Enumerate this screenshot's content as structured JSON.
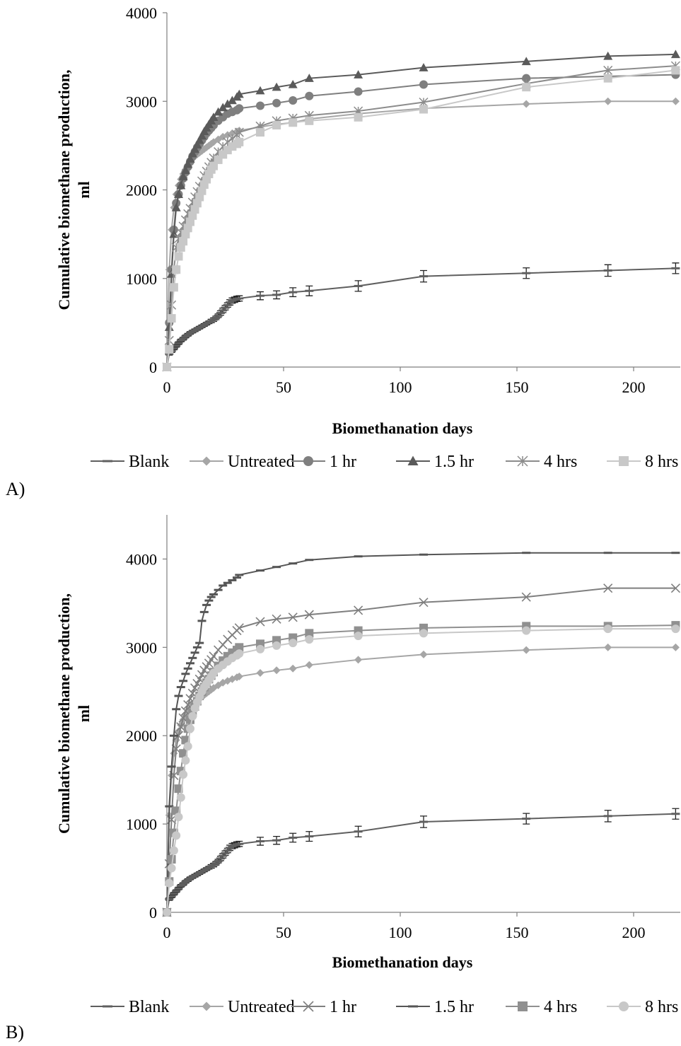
{
  "chart_data": [
    {
      "panel_label": "A)",
      "type": "line",
      "xlabel": "Biomethanation days",
      "ylabel_lines": [
        "Cumulative biomethane production,",
        "ml"
      ],
      "xlim": [
        0,
        220
      ],
      "ylim": [
        0,
        4000
      ],
      "xticks": [
        0,
        50,
        100,
        150,
        200
      ],
      "yticks": [
        0,
        1000,
        2000,
        3000,
        4000
      ],
      "grid": false,
      "legend_position": "bottom",
      "series": [
        {
          "name": "Blank",
          "color": "#5f5f5f",
          "marker": "dash",
          "error_bars": true,
          "x": [
            0,
            1,
            2,
            3,
            4,
            5,
            6,
            7,
            8,
            9,
            10,
            11,
            12,
            13,
            14,
            15,
            16,
            17,
            18,
            19,
            20,
            21,
            22,
            23,
            24,
            25,
            26,
            27,
            28,
            29,
            30,
            31,
            40,
            47,
            54,
            61,
            82,
            110,
            154,
            189,
            218
          ],
          "y": [
            0,
            150,
            180,
            210,
            240,
            270,
            300,
            320,
            345,
            365,
            385,
            400,
            415,
            430,
            445,
            460,
            475,
            490,
            505,
            520,
            535,
            555,
            580,
            610,
            640,
            670,
            700,
            730,
            750,
            760,
            770,
            775,
            805,
            815,
            845,
            860,
            915,
            1025,
            1060,
            1090,
            1115
          ],
          "err": [
            0,
            15,
            15,
            15,
            15,
            15,
            15,
            15,
            15,
            15,
            15,
            15,
            15,
            15,
            15,
            15,
            15,
            15,
            15,
            20,
            20,
            20,
            20,
            25,
            25,
            25,
            25,
            30,
            30,
            30,
            30,
            30,
            45,
            45,
            50,
            55,
            60,
            65,
            60,
            65,
            60
          ]
        },
        {
          "name": "Untreated",
          "color": "#a6a6a6",
          "marker": "diamond",
          "x": [
            0,
            1,
            2,
            3,
            4,
            5,
            6,
            7,
            8,
            9,
            10,
            11,
            12,
            13,
            14,
            15,
            16,
            17,
            18,
            19,
            20,
            22,
            24,
            26,
            28,
            30,
            31,
            40,
            47,
            54,
            61,
            82,
            110,
            154,
            189,
            218
          ],
          "y": [
            0,
            1100,
            1550,
            1800,
            1950,
            2050,
            2120,
            2180,
            2230,
            2270,
            2310,
            2350,
            2380,
            2400,
            2420,
            2440,
            2460,
            2480,
            2500,
            2520,
            2540,
            2570,
            2600,
            2620,
            2640,
            2660,
            2670,
            2710,
            2740,
            2760,
            2800,
            2860,
            2920,
            2970,
            3000,
            3000
          ]
        },
        {
          "name": "1 hr",
          "color": "#7f7f7f",
          "marker": "circle",
          "x": [
            0,
            1,
            2,
            3,
            4,
            5,
            6,
            7,
            8,
            9,
            10,
            11,
            12,
            13,
            14,
            15,
            16,
            17,
            18,
            19,
            20,
            22,
            24,
            26,
            28,
            30,
            31,
            40,
            47,
            54,
            61,
            82,
            110,
            154,
            218
          ],
          "y": [
            0,
            500,
            1100,
            1550,
            1850,
            1950,
            2050,
            2130,
            2200,
            2260,
            2320,
            2380,
            2430,
            2480,
            2520,
            2560,
            2600,
            2640,
            2670,
            2700,
            2730,
            2780,
            2820,
            2860,
            2880,
            2900,
            2920,
            2950,
            2980,
            3010,
            3060,
            3110,
            3190,
            3260,
            3300
          ]
        },
        {
          "name": "1.5 hr",
          "color": "#5a5a5a",
          "marker": "triangle",
          "x": [
            0,
            1,
            2,
            3,
            4,
            5,
            6,
            7,
            8,
            9,
            10,
            11,
            12,
            13,
            14,
            15,
            16,
            17,
            18,
            19,
            20,
            22,
            24,
            26,
            28,
            30,
            31,
            40,
            47,
            54,
            61,
            82,
            110,
            154,
            189,
            218
          ],
          "y": [
            0,
            450,
            1050,
            1500,
            1800,
            1950,
            2050,
            2150,
            2220,
            2290,
            2350,
            2410,
            2460,
            2510,
            2560,
            2610,
            2660,
            2700,
            2740,
            2780,
            2820,
            2880,
            2930,
            2970,
            3010,
            3050,
            3080,
            3120,
            3160,
            3190,
            3260,
            3300,
            3380,
            3450,
            3510,
            3530
          ]
        },
        {
          "name": "4 hrs",
          "color": "#8c8c8c",
          "marker": "asterisk",
          "x": [
            0,
            1,
            2,
            3,
            4,
            5,
            6,
            7,
            8,
            9,
            10,
            11,
            12,
            13,
            14,
            15,
            16,
            17,
            18,
            19,
            20,
            22,
            24,
            26,
            28,
            30,
            31,
            40,
            47,
            54,
            61,
            82,
            110,
            154,
            189,
            218
          ],
          "y": [
            0,
            300,
            700,
            1100,
            1350,
            1450,
            1520,
            1590,
            1660,
            1730,
            1790,
            1860,
            1920,
            1980,
            2040,
            2100,
            2160,
            2210,
            2260,
            2310,
            2360,
            2430,
            2490,
            2540,
            2580,
            2620,
            2650,
            2720,
            2780,
            2810,
            2840,
            2890,
            2990,
            3200,
            3350,
            3400
          ]
        },
        {
          "name": "8 hrs",
          "color": "#c8c8c8",
          "marker": "square",
          "x": [
            0,
            1,
            2,
            3,
            4,
            5,
            6,
            7,
            8,
            9,
            10,
            11,
            12,
            13,
            14,
            15,
            16,
            17,
            18,
            19,
            20,
            22,
            24,
            26,
            28,
            30,
            31,
            40,
            47,
            54,
            61,
            82,
            110,
            154,
            189,
            218
          ],
          "y": [
            0,
            200,
            550,
            900,
            1100,
            1250,
            1350,
            1420,
            1500,
            1570,
            1640,
            1710,
            1780,
            1850,
            1920,
            1990,
            2060,
            2120,
            2180,
            2230,
            2270,
            2340,
            2400,
            2450,
            2490,
            2520,
            2540,
            2650,
            2730,
            2760,
            2780,
            2820,
            2910,
            3160,
            3260,
            3350
          ]
        }
      ]
    },
    {
      "panel_label": "B)",
      "type": "line",
      "xlabel": "Biomethanation days",
      "ylabel_lines": [
        "Cumulative biomethane production,",
        "ml"
      ],
      "xlim": [
        0,
        220
      ],
      "ylim": [
        0,
        4500
      ],
      "xticks": [
        0,
        50,
        100,
        150,
        200
      ],
      "yticks": [
        0,
        1000,
        2000,
        3000,
        4000
      ],
      "grid": false,
      "legend_position": "bottom",
      "series": [
        {
          "name": "Blank",
          "color": "#5f5f5f",
          "marker": "dash",
          "error_bars": true,
          "x": [
            0,
            1,
            2,
            3,
            4,
            5,
            6,
            7,
            8,
            9,
            10,
            11,
            12,
            13,
            14,
            15,
            16,
            17,
            18,
            19,
            20,
            21,
            22,
            23,
            24,
            25,
            26,
            27,
            28,
            29,
            30,
            31,
            40,
            47,
            54,
            61,
            82,
            110,
            154,
            189,
            218
          ],
          "y": [
            0,
            150,
            180,
            210,
            240,
            270,
            300,
            320,
            345,
            365,
            385,
            400,
            415,
            430,
            445,
            460,
            475,
            490,
            505,
            520,
            535,
            555,
            580,
            610,
            640,
            670,
            700,
            730,
            750,
            760,
            770,
            775,
            805,
            815,
            845,
            860,
            915,
            1025,
            1060,
            1090,
            1115
          ],
          "err": [
            0,
            15,
            15,
            15,
            15,
            15,
            15,
            15,
            15,
            15,
            15,
            15,
            15,
            15,
            15,
            15,
            15,
            15,
            15,
            20,
            20,
            20,
            20,
            25,
            25,
            25,
            25,
            30,
            30,
            30,
            30,
            30,
            45,
            45,
            50,
            55,
            60,
            65,
            60,
            65,
            60
          ]
        },
        {
          "name": "Untreated",
          "color": "#a6a6a6",
          "marker": "diamond",
          "x": [
            0,
            1,
            2,
            3,
            4,
            5,
            6,
            7,
            8,
            9,
            10,
            11,
            12,
            13,
            14,
            15,
            16,
            17,
            18,
            19,
            20,
            22,
            24,
            26,
            28,
            30,
            31,
            40,
            47,
            54,
            61,
            82,
            110,
            154,
            189,
            218
          ],
          "y": [
            0,
            1100,
            1550,
            1800,
            1950,
            2050,
            2120,
            2180,
            2230,
            2270,
            2310,
            2350,
            2380,
            2400,
            2420,
            2440,
            2460,
            2480,
            2500,
            2520,
            2540,
            2570,
            2600,
            2620,
            2640,
            2660,
            2670,
            2710,
            2740,
            2760,
            2800,
            2860,
            2920,
            2970,
            3000,
            3000
          ]
        },
        {
          "name": "1 hr",
          "color": "#7f7f7f",
          "marker": "x",
          "x": [
            0,
            1,
            2,
            3,
            4,
            5,
            6,
            7,
            8,
            9,
            10,
            11,
            12,
            13,
            14,
            15,
            16,
            17,
            18,
            19,
            20,
            22,
            24,
            26,
            28,
            30,
            31,
            40,
            47,
            54,
            61,
            82,
            110,
            154,
            189,
            218
          ],
          "y": [
            0,
            550,
            1050,
            1550,
            1850,
            2000,
            2100,
            2200,
            2280,
            2350,
            2420,
            2480,
            2540,
            2590,
            2640,
            2690,
            2740,
            2780,
            2820,
            2860,
            2900,
            2970,
            3030,
            3090,
            3140,
            3190,
            3220,
            3290,
            3320,
            3340,
            3370,
            3420,
            3510,
            3570,
            3670,
            3670
          ]
        },
        {
          "name": "1.5 hr",
          "color": "#555555",
          "marker": "dash",
          "x": [
            0,
            1,
            2,
            3,
            4,
            5,
            6,
            7,
            8,
            9,
            10,
            11,
            12,
            13,
            14,
            15,
            16,
            17,
            18,
            19,
            20,
            22,
            24,
            26,
            28,
            30,
            31,
            40,
            47,
            54,
            61,
            82,
            110,
            154,
            189,
            218
          ],
          "y": [
            0,
            1200,
            1650,
            2000,
            2300,
            2450,
            2550,
            2620,
            2700,
            2760,
            2820,
            2880,
            2940,
            3000,
            3050,
            3300,
            3400,
            3480,
            3530,
            3570,
            3600,
            3650,
            3700,
            3730,
            3760,
            3790,
            3820,
            3870,
            3910,
            3950,
            3990,
            4030,
            4050,
            4070,
            4070,
            4070
          ]
        },
        {
          "name": "4 hrs",
          "color": "#909090",
          "marker": "square",
          "x": [
            0,
            1,
            2,
            3,
            4,
            5,
            6,
            7,
            8,
            9,
            10,
            11,
            12,
            13,
            14,
            15,
            16,
            17,
            18,
            19,
            20,
            22,
            24,
            26,
            28,
            30,
            31,
            40,
            47,
            54,
            61,
            82,
            110,
            154,
            189,
            218
          ],
          "y": [
            0,
            350,
            600,
            900,
            1150,
            1400,
            1600,
            1800,
            1950,
            2080,
            2180,
            2260,
            2330,
            2390,
            2450,
            2500,
            2550,
            2600,
            2640,
            2680,
            2720,
            2790,
            2850,
            2900,
            2940,
            2970,
            3000,
            3040,
            3080,
            3110,
            3160,
            3190,
            3220,
            3240,
            3240,
            3250
          ]
        },
        {
          "name": "8 hrs",
          "color": "#c8c8c8",
          "marker": "circle",
          "x": [
            0,
            1,
            2,
            3,
            4,
            5,
            6,
            7,
            8,
            9,
            10,
            11,
            12,
            13,
            14,
            15,
            16,
            17,
            18,
            19,
            20,
            22,
            24,
            26,
            28,
            30,
            31,
            40,
            47,
            54,
            61,
            82,
            110,
            154,
            189,
            218
          ],
          "y": [
            0,
            330,
            500,
            700,
            870,
            1080,
            1300,
            1560,
            1720,
            1880,
            2080,
            2220,
            2310,
            2380,
            2440,
            2500,
            2550,
            2590,
            2630,
            2670,
            2710,
            2760,
            2800,
            2840,
            2880,
            2910,
            2930,
            2980,
            3020,
            3050,
            3090,
            3130,
            3160,
            3190,
            3210,
            3210
          ]
        }
      ]
    }
  ]
}
